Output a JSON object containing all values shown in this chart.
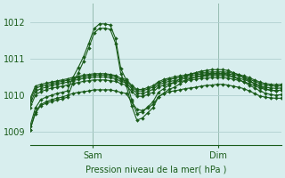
{
  "bg_color": "#d8eeee",
  "grid_color": "#b0d0d0",
  "line_color": "#1a5c1a",
  "xlabel": "Pression niveau de la mer( hPa )",
  "yticks": [
    1009,
    1010,
    1011,
    1012
  ],
  "ylim": [
    1008.65,
    1012.5
  ],
  "xlim": [
    0,
    96
  ],
  "sam_x": 24,
  "dim_x": 72,
  "xtick_labels": [
    "Sam",
    "Dim"
  ],
  "xtick_positions": [
    24,
    72
  ],
  "series": [
    [
      1009.05,
      1009.55,
      1009.75,
      1009.82,
      1009.88,
      1009.92,
      1009.95,
      1010.0,
      1010.05,
      1010.08,
      1010.1,
      1010.12,
      1010.15,
      1010.15,
      1010.15,
      1010.15,
      1010.12,
      1010.08,
      1010.05,
      1009.82,
      1009.62,
      1009.58,
      1009.65,
      1009.75,
      1009.95,
      1010.05,
      1010.1,
      1010.12,
      1010.15,
      1010.18,
      1010.2,
      1010.22,
      1010.25,
      1010.27,
      1010.28,
      1010.3,
      1010.3,
      1010.28,
      1010.25,
      1010.22,
      1010.18,
      1010.12,
      1010.05,
      1009.98,
      1009.95,
      1009.93,
      1009.92,
      1009.92
    ],
    [
      1009.65,
      1010.0,
      1010.1,
      1010.15,
      1010.2,
      1010.22,
      1010.25,
      1010.28,
      1010.32,
      1010.35,
      1010.38,
      1010.4,
      1010.42,
      1010.42,
      1010.42,
      1010.4,
      1010.38,
      1010.32,
      1010.28,
      1010.1,
      1009.98,
      1009.97,
      1010.02,
      1010.08,
      1010.22,
      1010.28,
      1010.32,
      1010.35,
      1010.38,
      1010.4,
      1010.42,
      1010.44,
      1010.46,
      1010.47,
      1010.48,
      1010.48,
      1010.48,
      1010.47,
      1010.44,
      1010.41,
      1010.37,
      1010.32,
      1010.26,
      1010.2,
      1010.16,
      1010.14,
      1010.13,
      1010.14
    ],
    [
      1009.75,
      1010.1,
      1010.18,
      1010.22,
      1010.27,
      1010.3,
      1010.33,
      1010.36,
      1010.4,
      1010.43,
      1010.46,
      1010.48,
      1010.5,
      1010.5,
      1010.5,
      1010.48,
      1010.45,
      1010.38,
      1010.34,
      1010.18,
      1010.06,
      1010.05,
      1010.1,
      1010.16,
      1010.28,
      1010.34,
      1010.38,
      1010.4,
      1010.43,
      1010.46,
      1010.48,
      1010.5,
      1010.52,
      1010.53,
      1010.54,
      1010.54,
      1010.54,
      1010.53,
      1010.5,
      1010.47,
      1010.43,
      1010.38,
      1010.32,
      1010.26,
      1010.22,
      1010.2,
      1010.19,
      1010.2
    ],
    [
      1009.85,
      1010.18,
      1010.25,
      1010.28,
      1010.32,
      1010.35,
      1010.38,
      1010.41,
      1010.45,
      1010.48,
      1010.51,
      1010.53,
      1010.55,
      1010.55,
      1010.55,
      1010.53,
      1010.5,
      1010.43,
      1010.39,
      1010.24,
      1010.12,
      1010.12,
      1010.17,
      1010.22,
      1010.33,
      1010.39,
      1010.43,
      1010.46,
      1010.49,
      1010.51,
      1010.54,
      1010.56,
      1010.58,
      1010.59,
      1010.6,
      1010.6,
      1010.6,
      1010.59,
      1010.56,
      1010.53,
      1010.49,
      1010.44,
      1010.38,
      1010.32,
      1010.28,
      1010.26,
      1010.25,
      1010.26
    ],
    [
      1009.9,
      1010.25,
      1010.3,
      1010.33,
      1010.36,
      1010.39,
      1010.42,
      1010.45,
      1010.49,
      1010.52,
      1010.55,
      1010.57,
      1010.59,
      1010.59,
      1010.59,
      1010.57,
      1010.54,
      1010.47,
      1010.43,
      1010.28,
      1010.16,
      1010.16,
      1010.21,
      1010.26,
      1010.37,
      1010.43,
      1010.47,
      1010.5,
      1010.53,
      1010.55,
      1010.58,
      1010.6,
      1010.62,
      1010.63,
      1010.64,
      1010.64,
      1010.64,
      1010.63,
      1010.6,
      1010.57,
      1010.53,
      1010.48,
      1010.42,
      1010.36,
      1010.32,
      1010.3,
      1010.29,
      1010.3
    ],
    [
      1009.15,
      1009.65,
      1009.88,
      1009.95,
      1010.0,
      1010.05,
      1010.08,
      1010.12,
      1010.48,
      1010.75,
      1011.05,
      1011.42,
      1011.82,
      1011.95,
      1011.95,
      1011.92,
      1011.55,
      1010.72,
      1010.42,
      1009.88,
      1009.5,
      1009.55,
      1009.68,
      1009.82,
      1010.08,
      1010.18,
      1010.28,
      1010.35,
      1010.44,
      1010.52,
      1010.58,
      1010.62,
      1010.66,
      1010.68,
      1010.7,
      1010.7,
      1010.7,
      1010.68,
      1010.62,
      1010.56,
      1010.48,
      1010.4,
      1010.32,
      1010.24,
      1010.18,
      1010.14,
      1010.12,
      1010.14
    ],
    [
      1009.05,
      1009.5,
      1009.72,
      1009.78,
      1009.83,
      1009.87,
      1009.9,
      1009.95,
      1010.32,
      1010.6,
      1010.92,
      1011.3,
      1011.7,
      1011.83,
      1011.83,
      1011.8,
      1011.42,
      1010.58,
      1010.28,
      1009.72,
      1009.32,
      1009.38,
      1009.52,
      1009.66,
      1009.95,
      1010.06,
      1010.16,
      1010.22,
      1010.31,
      1010.4,
      1010.46,
      1010.5,
      1010.54,
      1010.56,
      1010.58,
      1010.58,
      1010.58,
      1010.56,
      1010.5,
      1010.44,
      1010.36,
      1010.28,
      1010.2,
      1010.12,
      1010.06,
      1010.02,
      1010.0,
      1010.02
    ]
  ],
  "marker_size": 2.0,
  "linewidth": 0.8,
  "figsize": [
    3.2,
    2.0
  ],
  "dpi": 100
}
